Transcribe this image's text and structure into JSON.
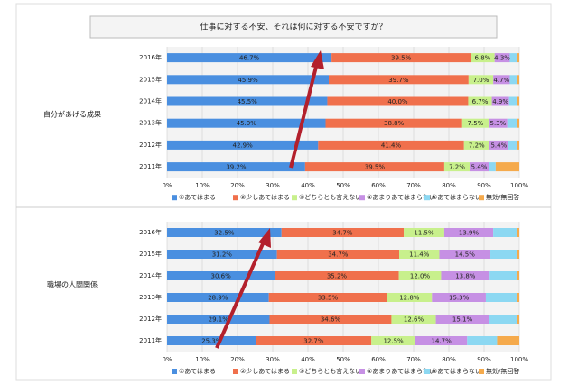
{
  "title": "仕事に対する不安、それは何に対する不安ですか？",
  "chart_data": [
    {
      "type": "bar",
      "orientation": "horizontal",
      "stacked": true,
      "group_label": "自分があげる成果",
      "categories": [
        "2016年",
        "2015年",
        "2014年",
        "2013年",
        "2012年",
        "2011年"
      ],
      "series": [
        {
          "name": "①あてはまる",
          "color": "#4a8fe0",
          "values": [
            46.7,
            45.9,
            45.5,
            45.0,
            42.9,
            39.2
          ],
          "value_labels": [
            "46.7%",
            "45.9%",
            "45.5%",
            "45.0%",
            "42.9%",
            "39.2%"
          ]
        },
        {
          "name": "②少しあてはまる",
          "color": "#f0704c",
          "values": [
            39.5,
            39.7,
            40.0,
            38.8,
            41.4,
            39.5
          ],
          "value_labels": [
            "39.5%",
            "39.7%",
            "40.0%",
            "38.8%",
            "41.4%",
            "39.5%"
          ]
        },
        {
          "name": "③どちらとも言えない",
          "color": "#c8f08c",
          "values": [
            6.8,
            7.0,
            6.7,
            7.5,
            7.2,
            7.2
          ],
          "value_labels": [
            "6.8%",
            "7.0%",
            "6.7%",
            "7.5%",
            "7.2%",
            "7.2%"
          ]
        },
        {
          "name": "④あまりあてはまらない",
          "color": "#c690e4",
          "values": [
            4.3,
            4.7,
            4.9,
            5.3,
            5.4,
            5.4
          ],
          "value_labels": [
            "4.3%",
            "4.7%",
            "4.9%",
            "5.3%",
            "5.4%",
            "5.4%"
          ]
        },
        {
          "name": "⑤あてはまらない",
          "color": "#8cd8f2",
          "values": [
            2.0,
            2.0,
            2.2,
            2.7,
            2.4,
            2.0
          ],
          "value_labels": [
            null,
            null,
            null,
            null,
            null,
            null
          ]
        },
        {
          "name": "無効/無回答",
          "color": "#f5aa4c",
          "values": [
            0.7,
            0.7,
            0.7,
            0.7,
            0.7,
            6.7
          ],
          "value_labels": [
            null,
            null,
            null,
            null,
            null,
            null
          ]
        }
      ],
      "xlim": [
        0,
        100
      ],
      "xticks": [
        {
          "value": 0,
          "label": "0%"
        },
        {
          "value": 10,
          "label": "10%"
        },
        {
          "value": 20,
          "label": "20%"
        },
        {
          "value": 30,
          "label": "30%"
        },
        {
          "value": 40,
          "label": "40%"
        },
        {
          "value": 50,
          "label": "50%"
        },
        {
          "value": 60,
          "label": "60%"
        },
        {
          "value": 70,
          "label": "70%"
        },
        {
          "value": 80,
          "label": "80%"
        },
        {
          "value": 90,
          "label": "90%"
        },
        {
          "value": 100,
          "label": "100%"
        }
      ],
      "grid": true
    },
    {
      "type": "bar",
      "orientation": "horizontal",
      "stacked": true,
      "group_label": "職場の人間関係",
      "categories": [
        "2016年",
        "2015年",
        "2014年",
        "2013年",
        "2012年",
        "2011年"
      ],
      "series": [
        {
          "name": "①あてはまる",
          "color": "#4a8fe0",
          "values": [
            32.5,
            31.2,
            30.6,
            28.9,
            29.1,
            25.3
          ],
          "value_labels": [
            "32.5%",
            "31.2%",
            "30.6%",
            "28.9%",
            "29.1%",
            "25.3%"
          ]
        },
        {
          "name": "②少しあてはまる",
          "color": "#f0704c",
          "values": [
            34.7,
            34.7,
            35.2,
            33.5,
            34.6,
            32.7
          ],
          "value_labels": [
            "34.7%",
            "34.7%",
            "35.2%",
            "33.5%",
            "34.6%",
            "32.7%"
          ]
        },
        {
          "name": "③どちらとも言えない",
          "color": "#c8f08c",
          "values": [
            11.5,
            11.4,
            12.0,
            12.8,
            12.6,
            12.5
          ],
          "value_labels": [
            "11.5%",
            "11.4%",
            "12.0%",
            "12.8%",
            "12.6%",
            "12.5%"
          ]
        },
        {
          "name": "④あまりあてはまらない",
          "color": "#c690e4",
          "values": [
            13.9,
            14.5,
            13.8,
            15.3,
            15.1,
            14.7
          ],
          "value_labels": [
            "13.9%",
            "14.5%",
            "13.8%",
            "15.3%",
            "15.1%",
            "14.7%"
          ]
        },
        {
          "name": "⑤あてはまらない",
          "color": "#8cd8f2",
          "values": [
            6.7,
            7.5,
            7.7,
            8.8,
            7.9,
            8.5
          ],
          "value_labels": [
            null,
            null,
            null,
            null,
            null,
            null
          ]
        },
        {
          "name": "無効/無回答",
          "color": "#f5aa4c",
          "values": [
            0.7,
            0.7,
            0.7,
            0.7,
            0.7,
            6.3
          ],
          "value_labels": [
            null,
            null,
            null,
            null,
            null,
            null
          ]
        }
      ],
      "xlim": [
        0,
        100
      ],
      "xticks": [
        {
          "value": 0,
          "label": "0%"
        },
        {
          "value": 10,
          "label": "10%"
        },
        {
          "value": 20,
          "label": "20%"
        },
        {
          "value": 30,
          "label": "30%"
        },
        {
          "value": 40,
          "label": "40%"
        },
        {
          "value": 50,
          "label": "50%"
        },
        {
          "value": 60,
          "label": "60%"
        },
        {
          "value": 70,
          "label": "70%"
        },
        {
          "value": 80,
          "label": "80%"
        },
        {
          "value": 90,
          "label": "90%"
        },
        {
          "value": 100,
          "label": "100%"
        }
      ],
      "grid": true
    }
  ]
}
